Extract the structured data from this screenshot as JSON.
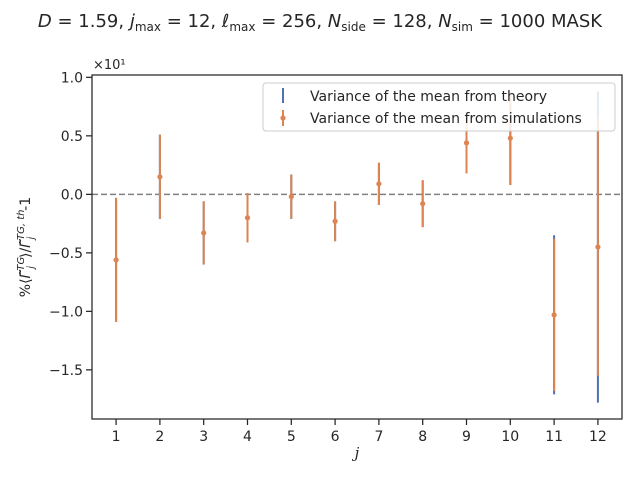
{
  "chart_data": {
    "type": "scatter",
    "title": "D = 1.59,  j_max = 12,  ℓ_max = 256,  N_side = 128,  N_sim = 1000 MASK",
    "xlabel": "j",
    "ylabel": "%⟨Γ̃_j^TG⟩/Γ̃_j^{TG,th}-1",
    "y_offset_label": "×10¹",
    "xlim": [
      0.45,
      12.55
    ],
    "ylim": [
      -1.92,
      1.02
    ],
    "xticks": [
      1,
      2,
      3,
      4,
      5,
      6,
      7,
      8,
      9,
      10,
      11,
      12
    ],
    "xtick_labels": [
      "1",
      "2",
      "3",
      "4",
      "5",
      "6",
      "7",
      "8",
      "9",
      "10",
      "11",
      "12"
    ],
    "yticks": [
      -1.5,
      -1.0,
      -0.5,
      0.0,
      0.5,
      1.0
    ],
    "ytick_labels": [
      "−1.5",
      "−1.0",
      "−0.5",
      "0.0",
      "0.5",
      "1.0"
    ],
    "reference_line": {
      "y": 0,
      "style": "dashed",
      "color": "#808080"
    },
    "legend_position": "top-right",
    "series": [
      {
        "name": "Variance of the mean from theory",
        "color": "#4c72b0",
        "marker": "errorbar",
        "x": [
          1,
          2,
          3,
          4,
          5,
          6,
          7,
          8,
          9,
          10,
          11,
          12
        ],
        "y": [
          -0.56,
          0.15,
          -0.33,
          -0.2,
          -0.02,
          -0.23,
          0.09,
          -0.08,
          0.44,
          0.48,
          -1.03,
          -0.45
        ],
        "yerr": [
          0.53,
          0.36,
          0.27,
          0.21,
          0.19,
          0.17,
          0.18,
          0.2,
          0.26,
          0.4,
          0.68,
          1.33
        ]
      },
      {
        "name": "Variance of the mean from simulations",
        "color": "#dd8452",
        "marker": "point",
        "x": [
          1,
          2,
          3,
          4,
          5,
          6,
          7,
          8,
          9,
          10,
          11,
          12
        ],
        "y": [
          -0.56,
          0.15,
          -0.33,
          -0.2,
          -0.02,
          -0.23,
          0.09,
          -0.08,
          0.44,
          0.48,
          -1.03,
          -0.45
        ],
        "yerr": [
          0.53,
          0.36,
          0.27,
          0.21,
          0.19,
          0.17,
          0.18,
          0.2,
          0.26,
          0.4,
          0.65,
          1.1
        ]
      }
    ]
  }
}
